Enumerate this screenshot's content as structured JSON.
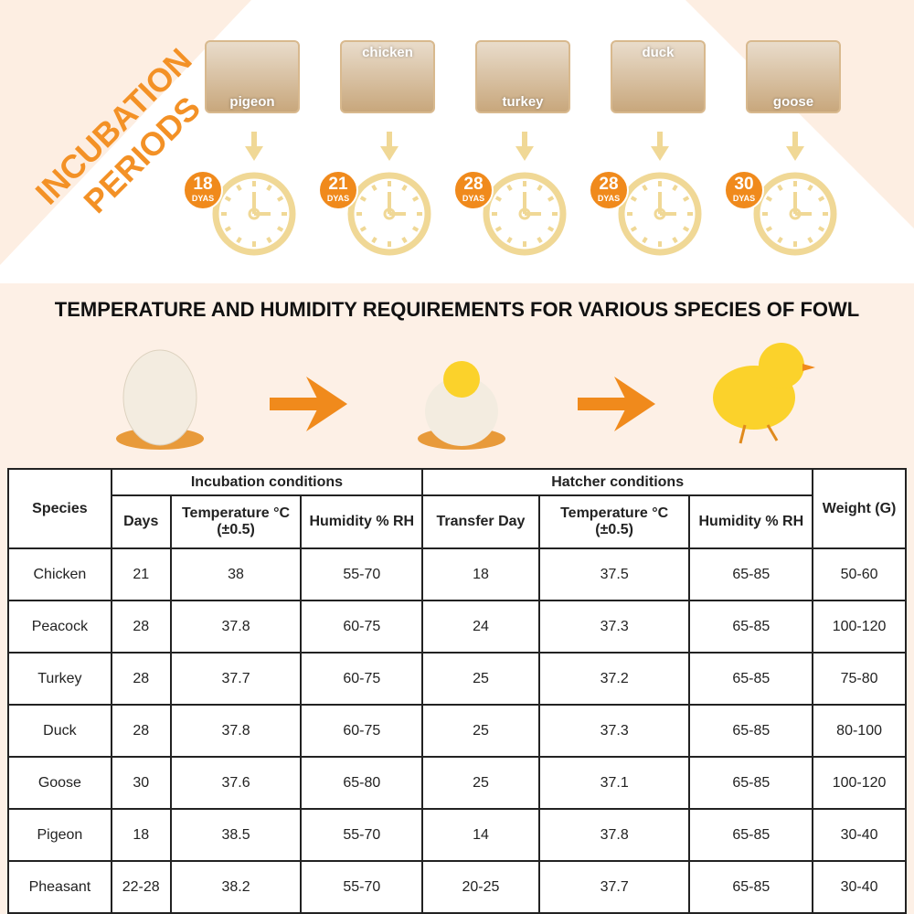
{
  "banner": {
    "title": "INCUBATION PERIODS",
    "line1": "INCUBATION",
    "line2": "PERIODS"
  },
  "birds": [
    {
      "name": "pigeon",
      "days": "18",
      "unit": "DYAS"
    },
    {
      "name": "chicken",
      "days": "21",
      "unit": "DYAS"
    },
    {
      "name": "turkey",
      "days": "28",
      "unit": "DYAS"
    },
    {
      "name": "duck",
      "days": "28",
      "unit": "DYAS"
    },
    {
      "name": "goose",
      "days": "30",
      "unit": "DYAS"
    }
  ],
  "heading": "TEMPERATURE AND HUMIDITY REQUIREMENTS FOR VARIOUS SPECIES OF FOWL",
  "colors": {
    "accent": "#f08a1c",
    "clock": "#f0d896",
    "background": "#fdf0e6"
  },
  "table": {
    "species": "Species",
    "incubation": "Incubation conditions",
    "hatcher": "Hatcher conditions",
    "weight": "Weight (G)",
    "days": "Days",
    "temp": "Temperature °C",
    "tol": "(±0.5)",
    "hum": "Humidity % RH",
    "transfer": "Transfer Day",
    "rows": [
      [
        "Chicken",
        "21",
        "38",
        "55-70",
        "18",
        "37.5",
        "65-85",
        "50-60"
      ],
      [
        "Peacock",
        "28",
        "37.8",
        "60-75",
        "24",
        "37.3",
        "65-85",
        "100-120"
      ],
      [
        "Turkey",
        "28",
        "37.7",
        "60-75",
        "25",
        "37.2",
        "65-85",
        "75-80"
      ],
      [
        "Duck",
        "28",
        "37.8",
        "60-75",
        "25",
        "37.3",
        "65-85",
        "80-100"
      ],
      [
        "Goose",
        "30",
        "37.6",
        "65-80",
        "25",
        "37.1",
        "65-85",
        "100-120"
      ],
      [
        "Pigeon",
        "18",
        "38.5",
        "55-70",
        "14",
        "37.8",
        "65-85",
        "30-40"
      ],
      [
        "Pheasant",
        "22-28",
        "38.2",
        "55-70",
        "20-25",
        "37.7",
        "65-85",
        "30-40"
      ]
    ]
  }
}
